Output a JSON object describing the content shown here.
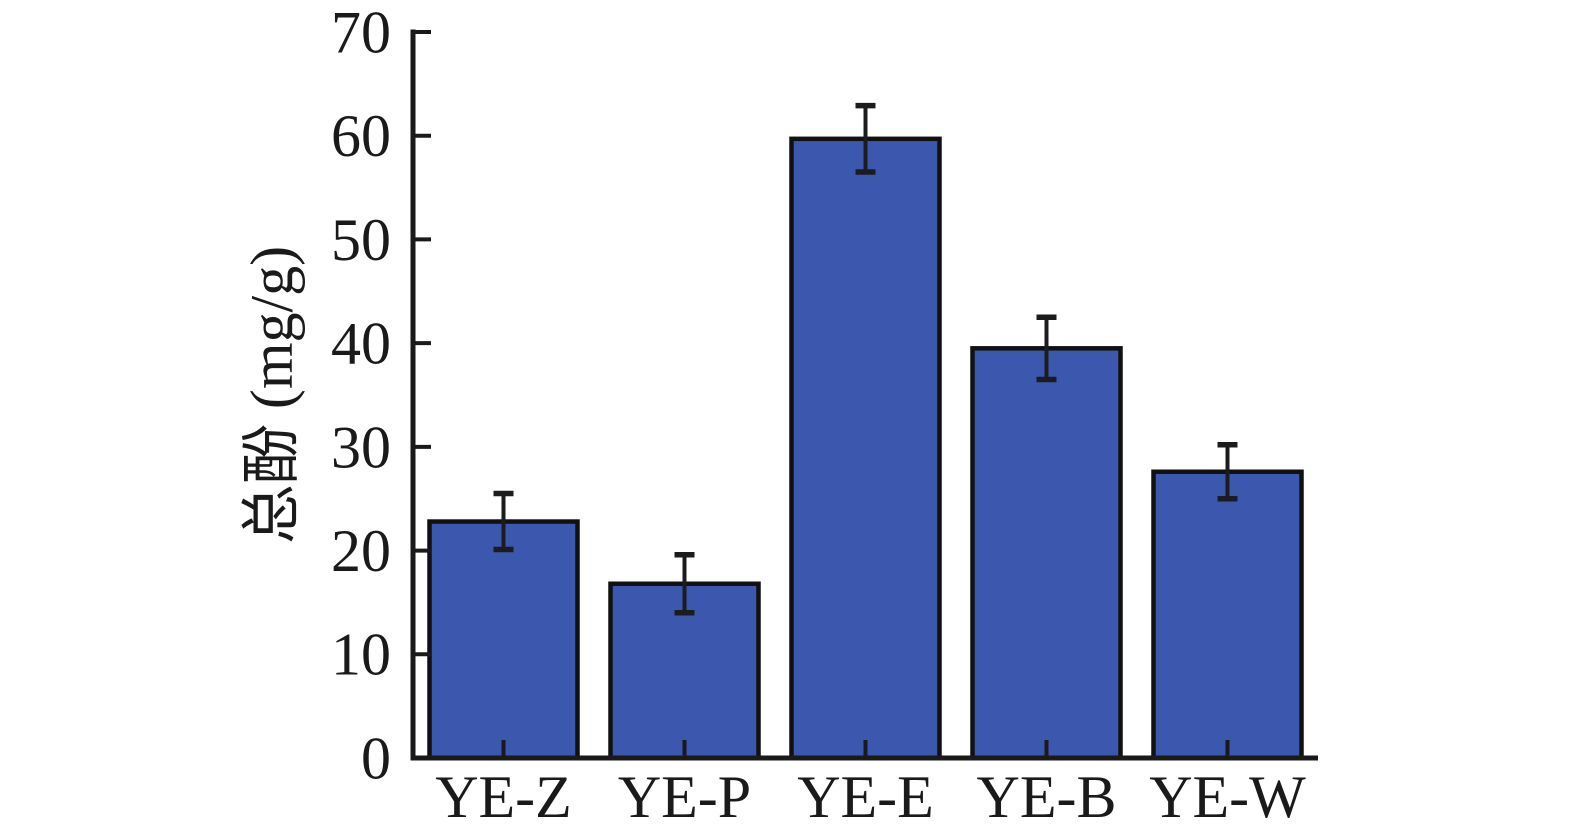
{
  "chart_data": {
    "type": "bar",
    "title": "",
    "xlabel": "",
    "ylabel": "总酚 (mg/g)",
    "categories": [
      "YE-Z",
      "YE-P",
      "YE-E",
      "YE-B",
      "YE-W"
    ],
    "values": [
      22.8,
      16.8,
      59.7,
      39.5,
      27.6
    ],
    "errors": [
      2.7,
      2.8,
      3.2,
      3.0,
      2.6
    ],
    "ylim": [
      0,
      70
    ],
    "yticks": [
      0,
      10,
      20,
      30,
      40,
      50,
      60,
      70
    ],
    "grid": false,
    "legend": false,
    "colors": {
      "bar_fill": "#3C57AE",
      "bar_edge": "#111111",
      "axis": "#1a1a1a",
      "text": "#1a1a1a",
      "error_bar": "#1c1c1e",
      "background": "#ffffff"
    }
  }
}
